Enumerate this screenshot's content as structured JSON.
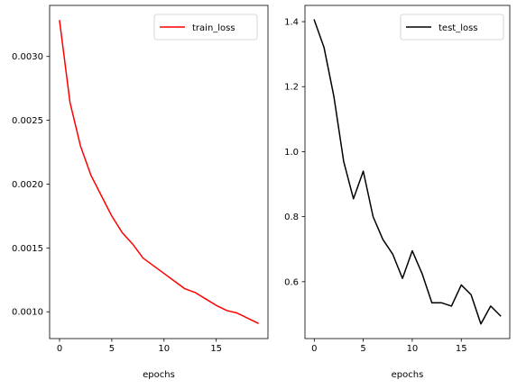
{
  "chart_data": [
    {
      "type": "line",
      "xlabel": "epochs",
      "ylabel": "",
      "xlim": [
        -0.95,
        19.95
      ],
      "ylim": [
        0.00079,
        0.0034
      ],
      "xticks": [
        0,
        5,
        10,
        15
      ],
      "xtick_labels": [
        "0",
        "5",
        "10",
        "15"
      ],
      "yticks": [
        0.001,
        0.0015,
        0.002,
        0.0025,
        0.003
      ],
      "ytick_labels": [
        "0.0010",
        "0.0015",
        "0.0020",
        "0.0025",
        "0.0030"
      ],
      "legend_position": "top-right",
      "grid": false,
      "series": [
        {
          "name": "train_loss",
          "color": "#ff0000",
          "x": [
            0,
            1,
            2,
            3,
            4,
            5,
            6,
            7,
            8,
            9,
            10,
            11,
            12,
            13,
            14,
            15,
            16,
            17,
            18,
            19
          ],
          "values": [
            0.00328,
            0.00264,
            0.0023,
            0.00207,
            0.00191,
            0.00175,
            0.00162,
            0.00153,
            0.00142,
            0.00136,
            0.0013,
            0.00124,
            0.00118,
            0.00115,
            0.0011,
            0.00105,
            0.00101,
            0.00099,
            0.00095,
            0.00091
          ]
        }
      ]
    },
    {
      "type": "line",
      "xlabel": "epochs",
      "ylabel": "",
      "xlim": [
        -0.95,
        19.95
      ],
      "ylim": [
        0.425,
        1.45
      ],
      "xticks": [
        0,
        5,
        10,
        15
      ],
      "xtick_labels": [
        "0",
        "5",
        "10",
        "15"
      ],
      "yticks": [
        0.6,
        0.8,
        1.0,
        1.2,
        1.4
      ],
      "ytick_labels": [
        "0.6",
        "0.8",
        "1.0",
        "1.2",
        "1.4"
      ],
      "legend_position": "top-right",
      "grid": false,
      "series": [
        {
          "name": "test_loss",
          "color": "#000000",
          "x": [
            0,
            1,
            2,
            3,
            4,
            5,
            6,
            7,
            8,
            9,
            10,
            11,
            12,
            13,
            14,
            15,
            16,
            17,
            18,
            19
          ],
          "values": [
            1.405,
            1.32,
            1.17,
            0.97,
            0.855,
            0.94,
            0.8,
            0.73,
            0.685,
            0.61,
            0.695,
            0.625,
            0.535,
            0.535,
            0.525,
            0.59,
            0.56,
            0.47,
            0.525,
            0.495
          ]
        }
      ]
    }
  ]
}
